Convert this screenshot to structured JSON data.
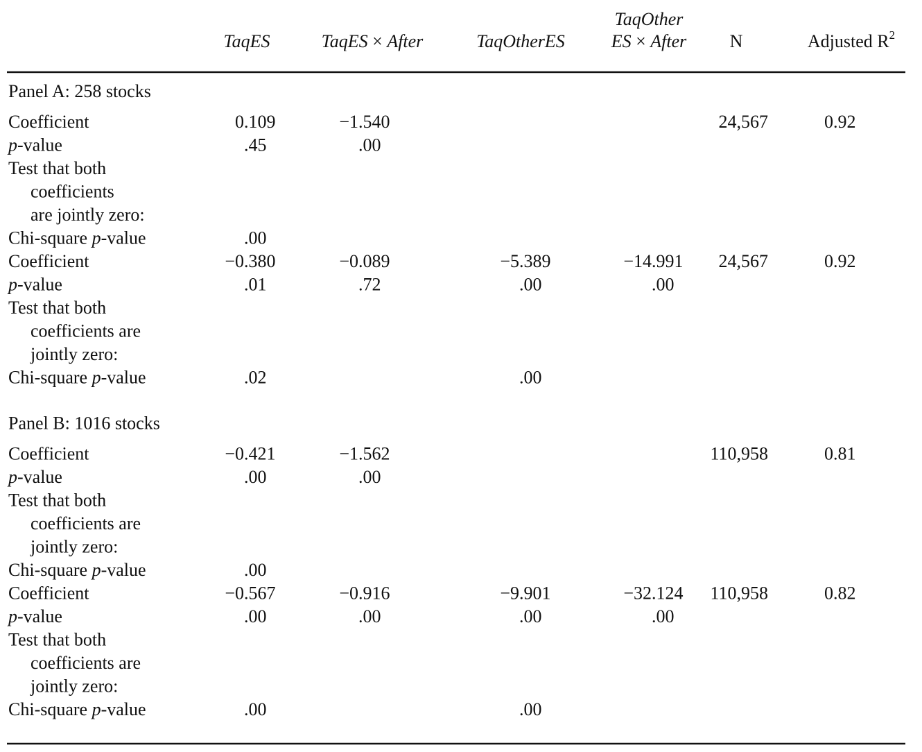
{
  "header": {
    "columns": [
      {
        "lines": [
          [
            {
              "text": "TaqES",
              "italic": true
            }
          ]
        ]
      },
      {
        "lines": [
          [
            {
              "text": "TaqES",
              "italic": true
            },
            {
              "text": " × "
            },
            {
              "text": "After",
              "italic": true
            }
          ]
        ]
      },
      {
        "lines": [
          [
            {
              "text": "TaqOtherES",
              "italic": true
            }
          ]
        ]
      },
      {
        "lines": [
          [
            {
              "text": "TaqOther",
              "italic": true
            }
          ],
          [
            {
              "text": "ES",
              "italic": true
            },
            {
              "text": " × "
            },
            {
              "text": "After",
              "italic": true
            }
          ]
        ]
      },
      {
        "lines": [
          [
            {
              "text": "N"
            }
          ]
        ]
      },
      {
        "lines": [
          [
            {
              "text": "Adjusted R"
            },
            {
              "text": "2",
              "sup": true
            }
          ]
        ]
      }
    ]
  },
  "panels": [
    {
      "title": "Panel A: 258 stocks",
      "rows": [
        {
          "label": [
            [
              {
                "text": "Coefficient"
              }
            ]
          ],
          "cells": [
            "0.109",
            "−1.540",
            null,
            null,
            "24,567",
            "0.92"
          ]
        },
        {
          "label": [
            [
              {
                "text": "p",
                "italic": true
              },
              {
                "text": "-value"
              }
            ]
          ],
          "cells": [
            ".45",
            ".00",
            null,
            null,
            null,
            null
          ]
        },
        {
          "label": [
            [
              {
                "text": "Test that both"
              }
            ],
            [
              {
                "text": "coefficients"
              }
            ],
            [
              {
                "text": "are jointly zero:"
              }
            ]
          ],
          "cells": [
            null,
            null,
            null,
            null,
            null,
            null
          ]
        },
        {
          "label": [
            [
              {
                "text": "Chi-square "
              },
              {
                "text": "p",
                "italic": true
              },
              {
                "text": "-value"
              }
            ]
          ],
          "cells": [
            ".00",
            null,
            null,
            null,
            null,
            null
          ]
        },
        {
          "label": [
            [
              {
                "text": "Coefficient"
              }
            ]
          ],
          "cells": [
            "−0.380",
            "−0.089",
            "−5.389",
            "−14.991",
            "24,567",
            "0.92"
          ]
        },
        {
          "label": [
            [
              {
                "text": "p",
                "italic": true
              },
              {
                "text": "-value"
              }
            ]
          ],
          "cells": [
            ".01",
            ".72",
            ".00",
            ".00",
            null,
            null
          ]
        },
        {
          "label": [
            [
              {
                "text": "Test that both"
              }
            ],
            [
              {
                "text": "coefficients are"
              }
            ],
            [
              {
                "text": "jointly zero:"
              }
            ]
          ],
          "cells": [
            null,
            null,
            null,
            null,
            null,
            null
          ]
        },
        {
          "label": [
            [
              {
                "text": "Chi-square "
              },
              {
                "text": "p",
                "italic": true
              },
              {
                "text": "-value"
              }
            ]
          ],
          "cells": [
            ".02",
            null,
            ".00",
            null,
            null,
            null
          ]
        }
      ]
    },
    {
      "title": "Panel B: 1016 stocks",
      "rows": [
        {
          "label": [
            [
              {
                "text": "Coefficient"
              }
            ]
          ],
          "cells": [
            "−0.421",
            "−1.562",
            null,
            null,
            "110,958",
            "0.81"
          ]
        },
        {
          "label": [
            [
              {
                "text": "p",
                "italic": true
              },
              {
                "text": "-value"
              }
            ]
          ],
          "cells": [
            ".00",
            ".00",
            null,
            null,
            null,
            null
          ]
        },
        {
          "label": [
            [
              {
                "text": "Test that both"
              }
            ],
            [
              {
                "text": "coefficients are"
              }
            ],
            [
              {
                "text": "jointly zero:"
              }
            ]
          ],
          "cells": [
            null,
            null,
            null,
            null,
            null,
            null
          ]
        },
        {
          "label": [
            [
              {
                "text": "Chi-square "
              },
              {
                "text": "p",
                "italic": true
              },
              {
                "text": "-value"
              }
            ]
          ],
          "cells": [
            ".00",
            null,
            null,
            null,
            null,
            null
          ]
        },
        {
          "label": [
            [
              {
                "text": "Coefficient"
              }
            ]
          ],
          "cells": [
            "−0.567",
            "−0.916",
            "−9.901",
            "−32.124",
            "110,958",
            "0.82"
          ]
        },
        {
          "label": [
            [
              {
                "text": "p",
                "italic": true
              },
              {
                "text": "-value"
              }
            ]
          ],
          "cells": [
            ".00",
            ".00",
            ".00",
            ".00",
            null,
            null
          ]
        },
        {
          "label": [
            [
              {
                "text": "Test that both"
              }
            ],
            [
              {
                "text": "coefficients are"
              }
            ],
            [
              {
                "text": "jointly zero:"
              }
            ]
          ],
          "cells": [
            null,
            null,
            null,
            null,
            null,
            null
          ]
        },
        {
          "label": [
            [
              {
                "text": "Chi-square "
              },
              {
                "text": "p",
                "italic": true
              },
              {
                "text": "-value"
              }
            ]
          ],
          "cells": [
            ".00",
            null,
            ".00",
            null,
            null,
            null
          ]
        }
      ]
    }
  ]
}
